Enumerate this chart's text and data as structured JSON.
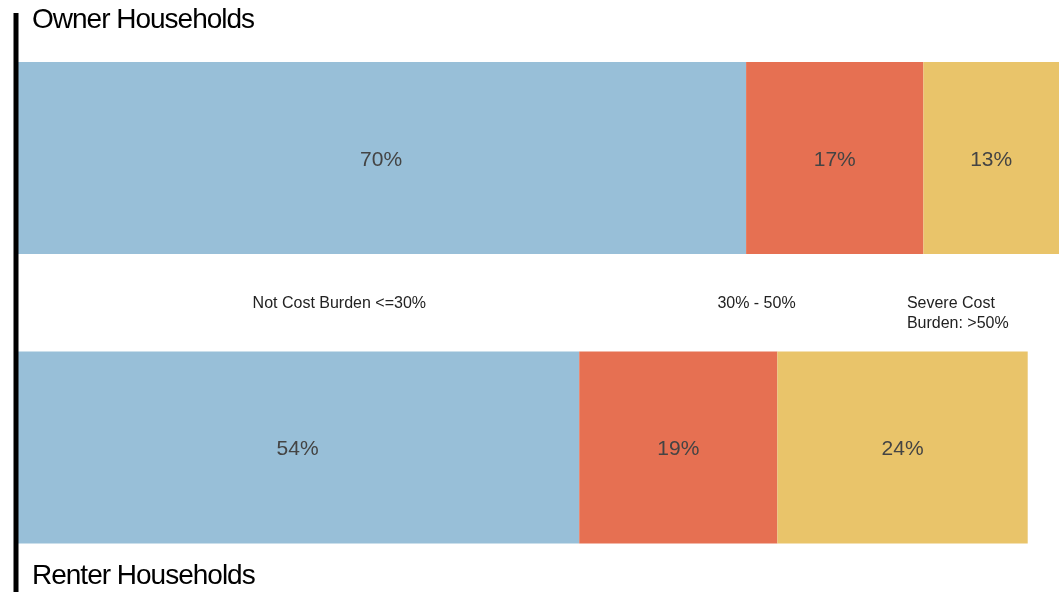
{
  "chart_data": {
    "type": "bar",
    "orientation": "horizontal",
    "stacked": true,
    "categories": [
      "Owner Households",
      "Renter Households"
    ],
    "xlim": [
      0,
      100
    ],
    "tick_labels": "y",
    "legend": "center",
    "series": [
      {
        "name": "Not Cost Burden <=30%",
        "color": "#98bfd8",
        "values": [
          70,
          54
        ],
        "value_labels": [
          "70%",
          "54%"
        ]
      },
      {
        "name": "30% - 50%",
        "color": "#e67052",
        "values": [
          17,
          19
        ],
        "value_labels": [
          "17%",
          "19%"
        ]
      },
      {
        "name": "Severe Cost Burden: >50%",
        "color": "#e9c46a",
        "values": [
          13,
          24
        ],
        "value_labels": [
          "13%",
          "24%"
        ]
      }
    ]
  }
}
